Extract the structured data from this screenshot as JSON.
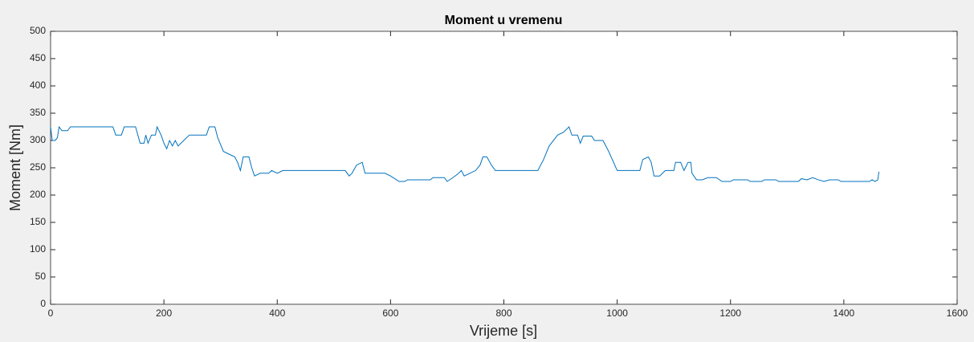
{
  "chart_data": {
    "type": "line",
    "title": "Moment u vremenu",
    "xlabel": "Vrijeme [s]",
    "ylabel": "Moment [Nm]",
    "x": [
      0,
      3,
      8,
      12,
      15,
      20,
      30,
      35,
      110,
      115,
      125,
      130,
      150,
      158,
      165,
      168,
      172,
      178,
      185,
      188,
      195,
      200,
      205,
      210,
      215,
      220,
      225,
      235,
      245,
      275,
      280,
      290,
      295,
      305,
      315,
      325,
      330,
      335,
      340,
      350,
      355,
      360,
      370,
      385,
      390,
      400,
      410,
      520,
      527,
      532,
      540,
      550,
      555,
      590,
      600,
      615,
      625,
      630,
      670,
      675,
      695,
      700,
      710,
      718,
      725,
      730,
      740,
      750,
      758,
      763,
      770,
      778,
      785,
      860,
      870,
      880,
      895,
      905,
      915,
      920,
      930,
      935,
      940,
      955,
      960,
      975,
      985,
      1000,
      1040,
      1045,
      1055,
      1060,
      1065,
      1075,
      1085,
      1100,
      1103,
      1112,
      1118,
      1125,
      1130,
      1132,
      1140,
      1150,
      1160,
      1175,
      1185,
      1200,
      1205,
      1230,
      1235,
      1255,
      1260,
      1280,
      1285,
      1320,
      1325,
      1335,
      1345,
      1355,
      1365,
      1375,
      1390,
      1395,
      1445,
      1450,
      1455,
      1460,
      1462
    ],
    "series": [
      {
        "name": "Moment",
        "color": "#0072bd",
        "values": [
          325,
          300,
          300,
          305,
          325,
          318,
          318,
          325,
          325,
          310,
          310,
          325,
          325,
          295,
          295,
          310,
          295,
          310,
          310,
          325,
          310,
          295,
          285,
          300,
          290,
          300,
          290,
          300,
          310,
          310,
          325,
          325,
          305,
          280,
          275,
          270,
          260,
          245,
          270,
          270,
          250,
          235,
          240,
          240,
          245,
          240,
          245,
          245,
          235,
          240,
          255,
          260,
          240,
          240,
          235,
          225,
          225,
          228,
          228,
          232,
          232,
          225,
          232,
          238,
          245,
          235,
          240,
          245,
          255,
          270,
          270,
          255,
          245,
          245,
          265,
          290,
          310,
          315,
          325,
          310,
          310,
          295,
          308,
          308,
          300,
          300,
          280,
          245,
          245,
          265,
          270,
          260,
          235,
          235,
          245,
          245,
          260,
          260,
          245,
          260,
          260,
          240,
          228,
          228,
          232,
          232,
          225,
          225,
          228,
          228,
          225,
          225,
          228,
          228,
          225,
          225,
          230,
          228,
          232,
          228,
          225,
          228,
          228,
          225,
          225,
          228,
          225,
          228,
          243
        ]
      }
    ],
    "xlim": [
      0,
      1600
    ],
    "xticks": [
      0,
      200,
      400,
      600,
      800,
      1000,
      1200,
      1400,
      1600
    ],
    "ylim": [
      0,
      500
    ],
    "yticks": [
      0,
      50,
      100,
      150,
      200,
      250,
      300,
      350,
      400,
      450,
      500
    ]
  }
}
